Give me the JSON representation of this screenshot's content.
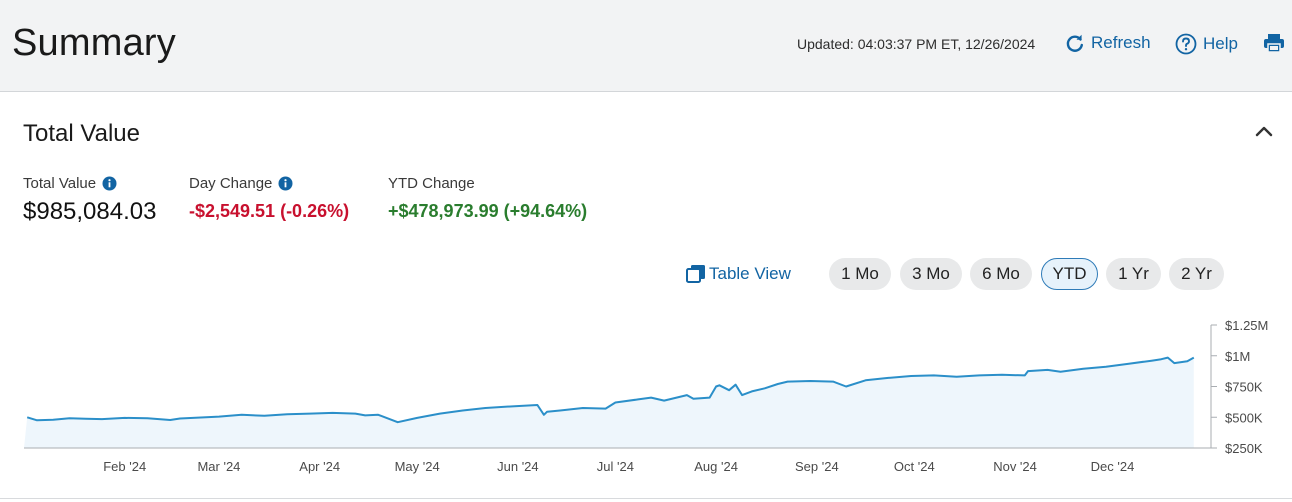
{
  "header": {
    "title": "Summary",
    "updated_text": "Updated: 04:03:37 PM ET, 12/26/2024",
    "refresh_label": "Refresh",
    "help_label": "Help",
    "icons": {
      "refresh": "refresh-icon",
      "help": "help-circle-icon",
      "print": "printer-icon"
    }
  },
  "section": {
    "title": "Total Value",
    "collapse_icon": "chevron-up-icon"
  },
  "metrics": {
    "total_value": {
      "label": "Total Value",
      "value": "$985,084.03"
    },
    "day_change": {
      "label": "Day Change",
      "value": "-$2,549.51 (-0.26%)"
    },
    "ytd_change": {
      "label": "YTD Change",
      "value": "+$478,973.99 (+94.64%)"
    }
  },
  "controls": {
    "table_view_label": "Table View",
    "ranges": [
      "1 Mo",
      "3 Mo",
      "6 Mo",
      "YTD",
      "1 Yr",
      "2 Yr"
    ],
    "selected_range": "YTD"
  },
  "colors": {
    "accent": "#1264a3",
    "negative": "#c8102e",
    "positive": "#2a7d2e",
    "line": "#2b8fc9",
    "area_fill": "#eef6fc"
  },
  "chart_data": {
    "type": "area",
    "title": "",
    "xlabel": "",
    "ylabel": "",
    "x_ticks": [
      "Feb '24",
      "Mar '24",
      "Apr '24",
      "May '24",
      "Jun '24",
      "Jul '24",
      "Aug '24",
      "Sep '24",
      "Oct '24",
      "Nov '24",
      "Dec '24"
    ],
    "y_ticks": [
      "$250K",
      "$500K",
      "$750K",
      "$1M",
      "$1.25M"
    ],
    "ylim": [
      250000,
      1250000
    ],
    "y_axis_position": "right",
    "grid": false,
    "series": [
      {
        "x": [
          "2024-01-02",
          "2024-01-05",
          "2024-01-10",
          "2024-01-15",
          "2024-01-20",
          "2024-01-25",
          "2024-02-01",
          "2024-02-08",
          "2024-02-15",
          "2024-02-18",
          "2024-02-22",
          "2024-03-01",
          "2024-03-08",
          "2024-03-15",
          "2024-03-22",
          "2024-03-29",
          "2024-04-05",
          "2024-04-12",
          "2024-04-15",
          "2024-04-19",
          "2024-04-25",
          "2024-05-01",
          "2024-05-08",
          "2024-05-15",
          "2024-05-22",
          "2024-05-31",
          "2024-06-07",
          "2024-06-09",
          "2024-06-10",
          "2024-06-14",
          "2024-06-21",
          "2024-06-28",
          "2024-07-01",
          "2024-07-08",
          "2024-07-12",
          "2024-07-16",
          "2024-07-23",
          "2024-07-25",
          "2024-07-30",
          "2024-08-01",
          "2024-08-02",
          "2024-08-05",
          "2024-08-07",
          "2024-08-09",
          "2024-08-12",
          "2024-08-16",
          "2024-08-20",
          "2024-08-23",
          "2024-08-30",
          "2024-09-06",
          "2024-09-10",
          "2024-09-16",
          "2024-09-23",
          "2024-09-30",
          "2024-10-07",
          "2024-10-14",
          "2024-10-21",
          "2024-10-28",
          "2024-11-04",
          "2024-11-05",
          "2024-11-11",
          "2024-11-15",
          "2024-11-22",
          "2024-11-29",
          "2024-12-06",
          "2024-12-13",
          "2024-12-16",
          "2024-12-18",
          "2024-12-20",
          "2024-12-24",
          "2024-12-26"
        ],
        "values": [
          500000,
          475000,
          480000,
          492000,
          488000,
          485000,
          495000,
          492000,
          478000,
          490000,
          495000,
          505000,
          520000,
          512000,
          525000,
          530000,
          535000,
          530000,
          515000,
          520000,
          460000,
          495000,
          530000,
          555000,
          575000,
          590000,
          600000,
          520000,
          545000,
          555000,
          575000,
          570000,
          620000,
          645000,
          660000,
          635000,
          680000,
          650000,
          660000,
          750000,
          760000,
          720000,
          765000,
          680000,
          710000,
          735000,
          770000,
          790000,
          795000,
          790000,
          750000,
          800000,
          820000,
          835000,
          840000,
          830000,
          840000,
          845000,
          840000,
          875000,
          885000,
          870000,
          895000,
          910000,
          935000,
          960000,
          972000,
          985000,
          940000,
          955000,
          985084
        ]
      }
    ]
  }
}
